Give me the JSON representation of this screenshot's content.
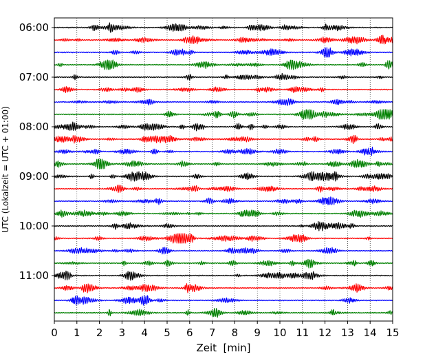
{
  "chart_data": {
    "type": "line",
    "title": "",
    "xlabel": "Zeit  [min]",
    "ylabel": "UTC (Lokalzeit = UTC + 01:00)",
    "xlim": [
      0,
      15
    ],
    "x_ticks": [
      0,
      1,
      2,
      3,
      4,
      5,
      6,
      7,
      8,
      9,
      10,
      11,
      12,
      13,
      14,
      15
    ],
    "x_tick_labels": [
      "0",
      "1",
      "2",
      "3",
      "4",
      "5",
      "6",
      "7",
      "8",
      "9",
      "10",
      "11",
      "12",
      "13",
      "14",
      "15"
    ],
    "y_tick_labels": [
      "06:00",
      "07:00",
      "08:00",
      "09:00",
      "10:00",
      "11:00"
    ],
    "grid_x": true,
    "grid_style": "dotted",
    "trace_start": "06:00",
    "trace_interval_minutes": 15,
    "trace_count": 24,
    "trace_color_cycle": [
      "#000000",
      "#ff0000",
      "#0000ff",
      "#008000"
    ]
  }
}
